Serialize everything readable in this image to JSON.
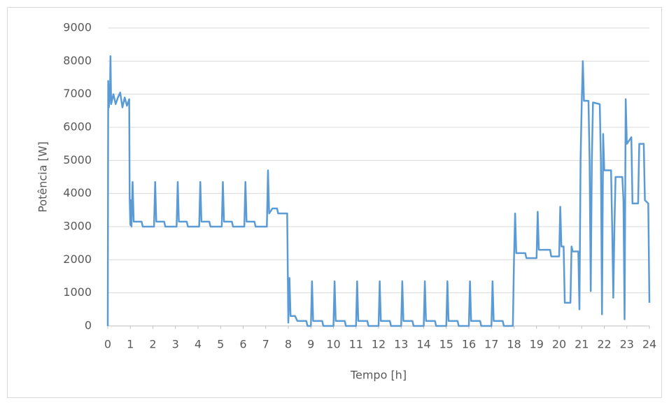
{
  "chart_data": {
    "type": "line",
    "y_label": "Potência [W]",
    "x_label": "Tempo [h]",
    "color": "#5b9bd5",
    "grid": true,
    "xlim": [
      0,
      24
    ],
    "xticks": [
      0,
      1,
      2,
      3,
      4,
      5,
      6,
      7,
      8,
      9,
      10,
      11,
      12,
      13,
      14,
      15,
      16,
      17,
      18,
      19,
      20,
      21,
      22,
      23,
      24
    ],
    "ylim": [
      0,
      9000
    ],
    "yticks": [
      0,
      1000,
      2000,
      3000,
      4000,
      5000,
      6000,
      7000,
      8000,
      9000
    ],
    "x": [
      0,
      0.02,
      0.05,
      0.1,
      0.12,
      0.15,
      0.25,
      0.35,
      0.45,
      0.55,
      0.65,
      0.75,
      0.85,
      0.95,
      0.97,
      1.0,
      1.02,
      1.05,
      1.1,
      1.15,
      1.5,
      1.55,
      2.05,
      2.1,
      2.15,
      2.5,
      2.55,
      3.05,
      3.1,
      3.15,
      3.5,
      3.55,
      4.05,
      4.1,
      4.15,
      4.5,
      4.55,
      5.05,
      5.1,
      5.15,
      5.5,
      5.55,
      6.05,
      6.1,
      6.15,
      6.5,
      6.55,
      7.05,
      7.1,
      7.15,
      7.3,
      7.5,
      7.55,
      7.95,
      8.0,
      8.05,
      8.1,
      8.3,
      8.4,
      8.8,
      8.85,
      9.0,
      9.05,
      9.1,
      9.5,
      9.55,
      10.0,
      10.05,
      10.1,
      10.5,
      10.55,
      11.0,
      11.05,
      11.1,
      11.5,
      11.55,
      12.0,
      12.05,
      12.1,
      12.5,
      12.55,
      13.0,
      13.05,
      13.1,
      13.5,
      13.55,
      14.0,
      14.05,
      14.1,
      14.5,
      14.55,
      15.0,
      15.05,
      15.1,
      15.5,
      15.55,
      16.0,
      16.05,
      16.1,
      16.5,
      16.55,
      17.0,
      17.05,
      17.1,
      17.5,
      17.55,
      17.95,
      18.0,
      18.05,
      18.1,
      18.5,
      18.55,
      19.0,
      19.05,
      19.1,
      19.6,
      19.65,
      20.0,
      20.05,
      20.1,
      20.2,
      20.25,
      20.5,
      20.55,
      20.6,
      20.85,
      20.9,
      20.95,
      21.0,
      21.05,
      21.1,
      21.3,
      21.35,
      21.4,
      21.45,
      21.5,
      21.8,
      21.85,
      21.9,
      21.95,
      22.0,
      22.3,
      22.35,
      22.4,
      22.45,
      22.5,
      22.8,
      22.85,
      22.9,
      22.95,
      23.0,
      23.2,
      23.25,
      23.5,
      23.55,
      23.75,
      23.8,
      23.95,
      24.0
    ],
    "values": [
      0,
      7400,
      6600,
      7100,
      8150,
      6700,
      7000,
      6700,
      6900,
      7050,
      6600,
      6900,
      6650,
      6850,
      3900,
      3050,
      3800,
      3000,
      4350,
      3150,
      3150,
      3000,
      3000,
      4350,
      3150,
      3150,
      3000,
      3000,
      4350,
      3150,
      3150,
      3000,
      3000,
      4350,
      3150,
      3150,
      3000,
      3000,
      4350,
      3150,
      3150,
      3000,
      3000,
      4350,
      3150,
      3150,
      3000,
      3000,
      4700,
      3400,
      3550,
      3550,
      3400,
      3400,
      100,
      1450,
      300,
      300,
      150,
      150,
      0,
      0,
      1350,
      150,
      150,
      0,
      0,
      1350,
      150,
      150,
      0,
      0,
      1350,
      150,
      150,
      0,
      0,
      1350,
      150,
      150,
      0,
      0,
      1350,
      150,
      150,
      0,
      0,
      1350,
      150,
      150,
      0,
      0,
      1350,
      150,
      150,
      0,
      0,
      1350,
      150,
      150,
      0,
      0,
      1350,
      150,
      150,
      0,
      0,
      2000,
      3400,
      2200,
      2200,
      2050,
      2050,
      3450,
      2300,
      2300,
      2100,
      2100,
      3600,
      2400,
      2400,
      700,
      700,
      2400,
      2250,
      2250,
      500,
      5000,
      6700,
      8000,
      6800,
      6800,
      5000,
      1050,
      5000,
      6750,
      6700,
      5000,
      350,
      5800,
      4700,
      4700,
      3000,
      850,
      3000,
      4500,
      4500,
      3800,
      200,
      6850,
      5500,
      5700,
      3700,
      3700,
      5500,
      5500,
      3800,
      3700,
      700
    ]
  }
}
